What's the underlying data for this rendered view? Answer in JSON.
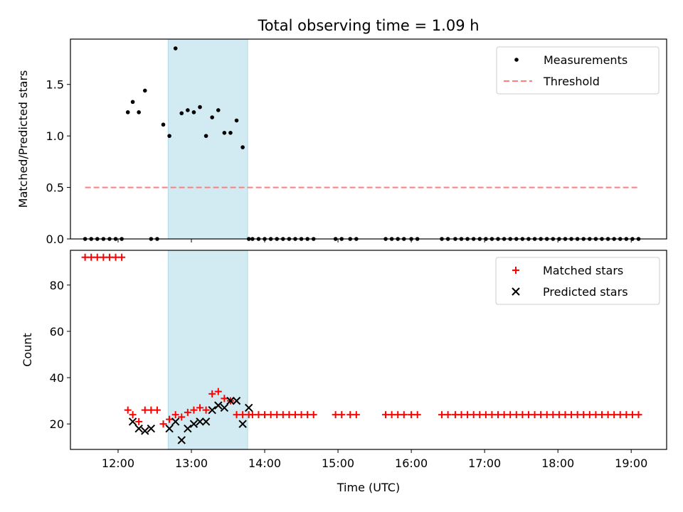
{
  "title": "Total observing time = 1.09 h",
  "xlabel": "Time (UTC)",
  "x_ticks": [
    "12:00",
    "13:00",
    "14:00",
    "15:00",
    "16:00",
    "17:00",
    "18:00",
    "19:00"
  ],
  "chart_data": [
    {
      "type": "scatter",
      "name": "ratio-panel",
      "ylabel": "Matched/Predicted stars",
      "xlim": [
        "11:21",
        "19:29"
      ],
      "ylim": [
        0,
        1.94
      ],
      "y_ticks": [
        "0.0",
        "0.5",
        "1.0",
        "1.5"
      ],
      "legend_position": "upper right",
      "highlight_span": {
        "start": "12:41",
        "end": "13:46",
        "color": "#add8e6"
      },
      "series": [
        {
          "name": "Measurements",
          "marker": "dot",
          "color": "#000000",
          "x": [
            "11:33",
            "11:38",
            "11:43",
            "11:48",
            "11:53",
            "11:58",
            "12:03",
            "12:08",
            "12:12",
            "12:17",
            "12:22",
            "12:27",
            "12:32",
            "12:37",
            "12:42",
            "12:47",
            "12:52",
            "12:57",
            "13:02",
            "13:07",
            "13:12",
            "13:17",
            "13:22",
            "13:27",
            "13:32",
            "13:37",
            "13:42",
            "13:47",
            "13:50",
            "13:55",
            "14:00",
            "14:05",
            "14:10",
            "14:15",
            "14:20",
            "14:25",
            "14:30",
            "14:35",
            "14:40",
            "14:58",
            "15:03",
            "15:10",
            "15:15",
            "15:39",
            "15:44",
            "15:49",
            "15:54",
            "16:00",
            "16:05",
            "16:25",
            "16:30",
            "16:36",
            "16:41",
            "16:46",
            "16:51",
            "16:56",
            "17:01",
            "17:06",
            "17:11",
            "17:16",
            "17:21",
            "17:26",
            "17:31",
            "17:36",
            "17:41",
            "17:46",
            "17:51",
            "17:56",
            "18:01",
            "18:06",
            "18:11",
            "18:16",
            "18:21",
            "18:26",
            "18:31",
            "18:36",
            "18:41",
            "18:46",
            "18:51",
            "18:56",
            "19:01",
            "19:06"
          ],
          "y": [
            0,
            0,
            0,
            0,
            0,
            0,
            0,
            1.23,
            1.33,
            1.23,
            1.44,
            0,
            0,
            1.11,
            1.0,
            1.85,
            1.22,
            1.25,
            1.23,
            1.28,
            1.0,
            1.18,
            1.25,
            1.03,
            1.03,
            1.15,
            0.89,
            0,
            0,
            0,
            0,
            0,
            0,
            0,
            0,
            0,
            0,
            0,
            0,
            0,
            0,
            0,
            0,
            0,
            0,
            0,
            0,
            0,
            0,
            0,
            0,
            0,
            0,
            0,
            0,
            0,
            0,
            0,
            0,
            0,
            0,
            0,
            0,
            0,
            0,
            0,
            0,
            0,
            0,
            0,
            0,
            0,
            0,
            0,
            0,
            0,
            0,
            0,
            0,
            0,
            0,
            0
          ]
        },
        {
          "name": "Threshold",
          "marker": "dashed-line",
          "color": "#ff7f7f",
          "x": [
            "11:33",
            "19:06"
          ],
          "y": [
            0.5,
            0.5
          ]
        }
      ]
    },
    {
      "type": "scatter",
      "name": "count-panel",
      "ylabel": "Count",
      "xlim": [
        "11:21",
        "19:29"
      ],
      "ylim": [
        9,
        95
      ],
      "y_ticks": [
        "20",
        "40",
        "60",
        "80"
      ],
      "legend_position": "upper right",
      "highlight_span": {
        "start": "12:41",
        "end": "13:46",
        "color": "#add8e6"
      },
      "series": [
        {
          "name": "Matched stars",
          "marker": "plus",
          "color": "#ff0000",
          "x": [
            "11:33",
            "11:38",
            "11:43",
            "11:48",
            "11:53",
            "11:58",
            "12:03",
            "12:08",
            "12:12",
            "12:17",
            "12:22",
            "12:27",
            "12:32",
            "12:37",
            "12:42",
            "12:47",
            "12:52",
            "12:57",
            "13:02",
            "13:07",
            "13:12",
            "13:17",
            "13:22",
            "13:27",
            "13:32",
            "13:37",
            "13:42",
            "13:47",
            "13:50",
            "13:55",
            "14:00",
            "14:05",
            "14:10",
            "14:15",
            "14:20",
            "14:25",
            "14:30",
            "14:35",
            "14:40",
            "14:58",
            "15:03",
            "15:10",
            "15:15",
            "15:39",
            "15:44",
            "15:49",
            "15:54",
            "16:00",
            "16:05",
            "16:25",
            "16:30",
            "16:36",
            "16:41",
            "16:46",
            "16:51",
            "16:56",
            "17:01",
            "17:06",
            "17:11",
            "17:16",
            "17:21",
            "17:26",
            "17:31",
            "17:36",
            "17:41",
            "17:46",
            "17:51",
            "17:56",
            "18:01",
            "18:06",
            "18:11",
            "18:16",
            "18:21",
            "18:26",
            "18:31",
            "18:36",
            "18:41",
            "18:46",
            "18:51",
            "18:56",
            "19:01",
            "19:06"
          ],
          "y": [
            92,
            92,
            92,
            92,
            92,
            92,
            92,
            26,
            24,
            21,
            26,
            26,
            26,
            20,
            22,
            24,
            23,
            25,
            26,
            27,
            26,
            33,
            34,
            31,
            30,
            24,
            24,
            24,
            24,
            24,
            24,
            24,
            24,
            24,
            24,
            24,
            24,
            24,
            24,
            24,
            24,
            24,
            24,
            24,
            24,
            24,
            24,
            24,
            24,
            24,
            24,
            24,
            24,
            24,
            24,
            24,
            24,
            24,
            24,
            24,
            24,
            24,
            24,
            24,
            24,
            24,
            24,
            24,
            24,
            24,
            24,
            24,
            24,
            24,
            24,
            24,
            24,
            24,
            24,
            24,
            24,
            24
          ]
        },
        {
          "name": "Predicted stars",
          "marker": "x",
          "color": "#000000",
          "x": [
            "12:12",
            "12:17",
            "12:22",
            "12:27",
            "12:42",
            "12:47",
            "12:52",
            "12:57",
            "13:02",
            "13:07",
            "13:12",
            "13:17",
            "13:22",
            "13:27",
            "13:32",
            "13:37",
            "13:42",
            "13:47"
          ],
          "y": [
            21,
            18,
            17,
            18,
            18,
            21,
            13,
            18,
            20,
            21,
            21,
            26,
            28,
            27,
            30,
            30,
            20,
            27
          ]
        }
      ]
    }
  ]
}
